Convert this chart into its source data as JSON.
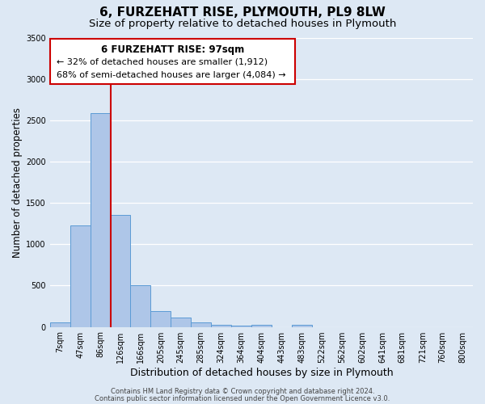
{
  "title": "6, FURZEHATT RISE, PLYMOUTH, PL9 8LW",
  "subtitle": "Size of property relative to detached houses in Plymouth",
  "xlabel": "Distribution of detached houses by size in Plymouth",
  "ylabel": "Number of detached properties",
  "bar_labels": [
    "7sqm",
    "47sqm",
    "86sqm",
    "126sqm",
    "166sqm",
    "205sqm",
    "245sqm",
    "285sqm",
    "324sqm",
    "364sqm",
    "404sqm",
    "443sqm",
    "483sqm",
    "522sqm",
    "562sqm",
    "602sqm",
    "641sqm",
    "681sqm",
    "721sqm",
    "760sqm",
    "800sqm"
  ],
  "bar_values": [
    50,
    1230,
    2590,
    1350,
    500,
    190,
    110,
    50,
    30,
    15,
    30,
    0,
    30,
    0,
    0,
    0,
    0,
    0,
    0,
    0,
    0
  ],
  "bar_color": "#aec6e8",
  "bar_edgecolor": "#5b9bd5",
  "ylim": [
    0,
    3500
  ],
  "yticks": [
    0,
    500,
    1000,
    1500,
    2000,
    2500,
    3000,
    3500
  ],
  "property_label": "6 FURZEHATT RISE: 97sqm",
  "annotation_line1": "← 32% of detached houses are smaller (1,912)",
  "annotation_line2": "68% of semi-detached houses are larger (4,084) →",
  "vline_x": 2.5,
  "vline_color": "#cc0000",
  "footer1": "Contains HM Land Registry data © Crown copyright and database right 2024.",
  "footer2": "Contains public sector information licensed under the Open Government Licence v3.0.",
  "bg_color": "#dde8f4",
  "grid_color": "#ffffff",
  "title_fontsize": 11,
  "subtitle_fontsize": 9.5,
  "xlabel_fontsize": 9,
  "ylabel_fontsize": 8.5,
  "tick_fontsize": 7,
  "annotation_title_fontsize": 8.5,
  "annotation_text_fontsize": 8,
  "footer_fontsize": 6
}
